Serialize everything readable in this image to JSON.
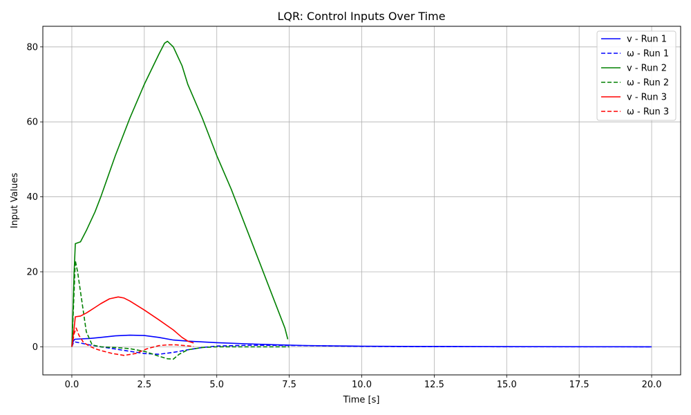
{
  "chart_data": {
    "type": "line",
    "title": "LQR: Control Inputs Over Time",
    "xlabel": "Time [s]",
    "ylabel": "Input Values",
    "xlim": [
      -1.0,
      21.0
    ],
    "ylim": [
      -7.5,
      85.5
    ],
    "xticks": [
      0.0,
      2.5,
      5.0,
      7.5,
      10.0,
      12.5,
      15.0,
      17.5,
      20.0
    ],
    "xtick_labels": [
      "0.0",
      "2.5",
      "5.0",
      "7.5",
      "10.0",
      "12.5",
      "15.0",
      "17.5",
      "20.0"
    ],
    "yticks": [
      0,
      20,
      40,
      60,
      80
    ],
    "ytick_labels": [
      "0",
      "20",
      "40",
      "60",
      "80"
    ],
    "grid": true,
    "legend_position": "top-right",
    "series": [
      {
        "name": "v - Run 1",
        "color": "#0000ff",
        "style": "solid",
        "x": [
          0.0,
          0.05,
          0.1,
          0.3,
          0.6,
          1.0,
          1.5,
          2.0,
          2.5,
          3.0,
          3.5,
          4.0,
          4.5,
          5.0,
          6.0,
          7.0,
          8.0,
          9.0,
          10.0,
          12.0,
          14.0,
          16.0,
          18.0,
          20.0
        ],
        "y": [
          0.0,
          1.5,
          2.0,
          2.1,
          2.2,
          2.5,
          2.9,
          3.1,
          3.0,
          2.5,
          1.8,
          1.5,
          1.3,
          1.1,
          0.8,
          0.55,
          0.35,
          0.25,
          0.15,
          0.08,
          0.04,
          0.02,
          0.01,
          0.0
        ]
      },
      {
        "name": "ω - Run 1",
        "color": "#0000ff",
        "style": "dashed",
        "x": [
          0.0,
          0.05,
          0.1,
          0.3,
          0.6,
          1.0,
          1.5,
          2.0,
          2.5,
          3.0,
          3.5,
          4.0,
          4.5,
          5.0,
          6.0,
          7.0,
          8.0,
          10.0,
          12.0,
          20.0
        ],
        "y": [
          0.0,
          1.0,
          1.3,
          1.0,
          0.5,
          0.0,
          -0.6,
          -1.2,
          -1.8,
          -2.0,
          -1.5,
          -0.8,
          -0.2,
          0.2,
          0.4,
          0.4,
          0.3,
          0.1,
          0.03,
          0.0
        ]
      },
      {
        "name": "v - Run 2",
        "color": "#008000",
        "style": "solid",
        "x": [
          0.0,
          0.08,
          0.12,
          0.3,
          0.5,
          0.8,
          1.0,
          1.5,
          2.0,
          2.5,
          3.0,
          3.2,
          3.3,
          3.5,
          3.8,
          4.0,
          4.5,
          5.0,
          5.5,
          6.0,
          6.5,
          7.0,
          7.35,
          7.45
        ],
        "y": [
          0.0,
          20.0,
          27.5,
          28.0,
          31.0,
          36.0,
          40.0,
          51.0,
          61.0,
          70.0,
          78.0,
          81.0,
          81.5,
          80.0,
          75.0,
          70.0,
          61.0,
          51.0,
          42.0,
          32.0,
          22.0,
          12.0,
          5.0,
          2.0
        ]
      },
      {
        "name": "ω - Run 2",
        "color": "#008000",
        "style": "dashed",
        "x": [
          0.0,
          0.08,
          0.12,
          0.2,
          0.35,
          0.5,
          0.7,
          1.0,
          1.5,
          2.0,
          2.5,
          3.0,
          3.3,
          3.5,
          3.7,
          4.0,
          4.5,
          5.0,
          6.0,
          7.5
        ],
        "y": [
          0.0,
          15.0,
          23.0,
          20.0,
          12.0,
          4.0,
          0.5,
          0.0,
          -0.2,
          -0.5,
          -1.2,
          -2.5,
          -3.2,
          -3.3,
          -2.0,
          -0.8,
          -0.2,
          0.0,
          0.0,
          0.0
        ]
      },
      {
        "name": "v - Run 3",
        "color": "#ff0000",
        "style": "solid",
        "x": [
          0.0,
          0.08,
          0.12,
          0.3,
          0.5,
          0.8,
          1.0,
          1.3,
          1.6,
          1.8,
          2.0,
          2.5,
          3.0,
          3.5,
          3.8,
          4.0,
          4.2
        ],
        "y": [
          0.0,
          5.0,
          8.0,
          8.2,
          9.0,
          10.5,
          11.5,
          12.8,
          13.3,
          13.0,
          12.2,
          9.8,
          7.2,
          4.5,
          2.5,
          1.5,
          1.0
        ]
      },
      {
        "name": "ω - Run 3",
        "color": "#ff0000",
        "style": "dashed",
        "x": [
          0.0,
          0.08,
          0.15,
          0.25,
          0.4,
          0.6,
          0.8,
          1.0,
          1.4,
          1.8,
          2.2,
          2.6,
          3.0,
          3.3,
          3.6,
          3.9,
          4.2
        ],
        "y": [
          0.0,
          3.5,
          5.0,
          3.0,
          1.2,
          0.2,
          -0.5,
          -1.0,
          -1.8,
          -2.3,
          -1.8,
          -0.5,
          0.3,
          0.5,
          0.5,
          0.3,
          0.1
        ]
      }
    ]
  }
}
